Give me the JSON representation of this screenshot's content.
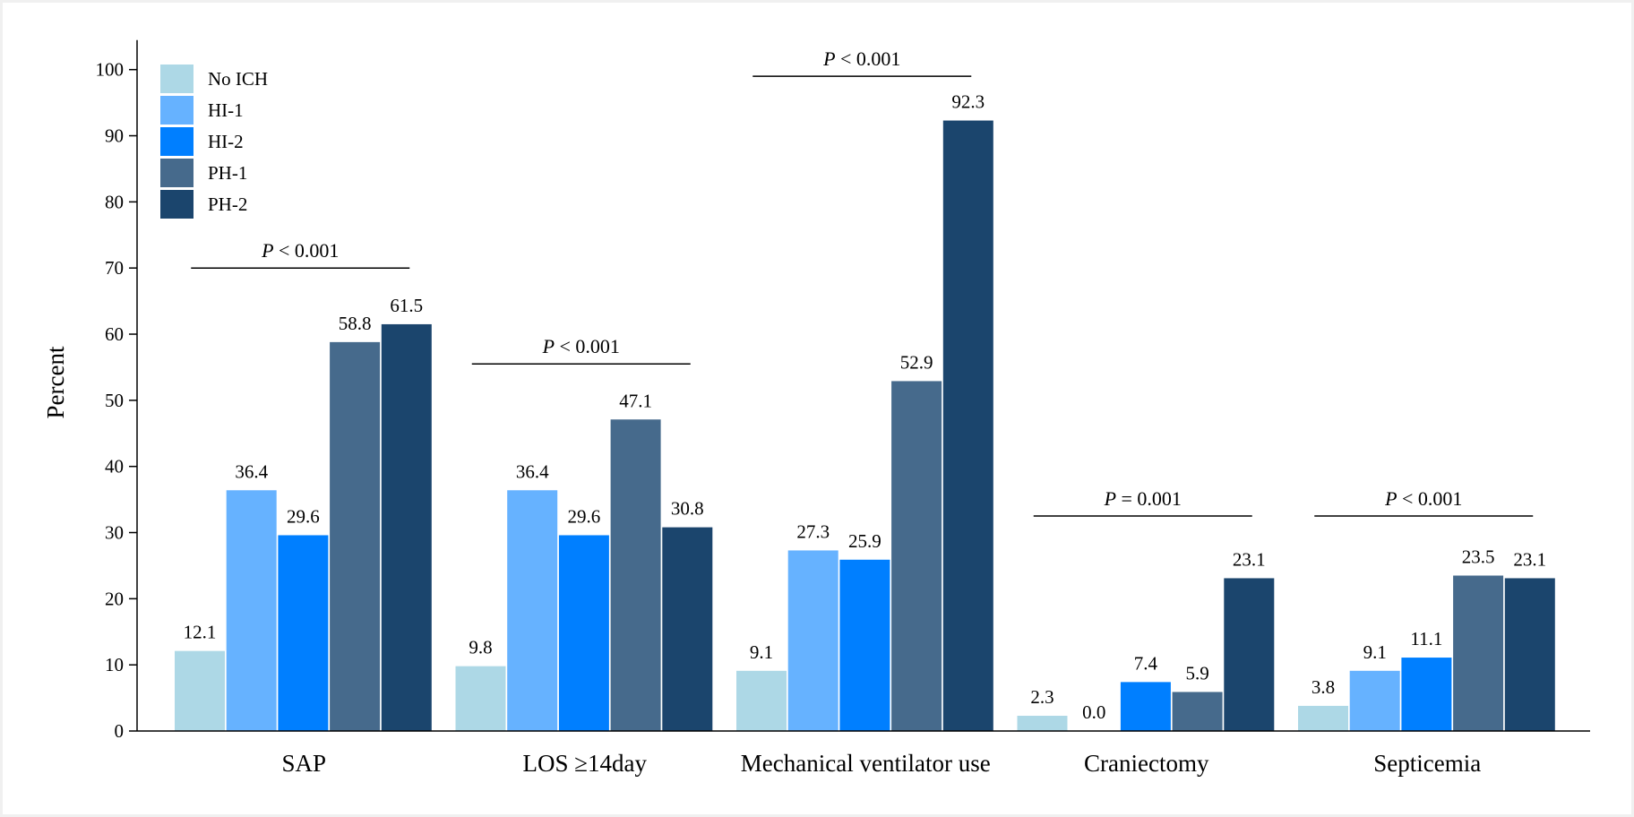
{
  "chart_data": {
    "type": "bar",
    "ylabel": "Percent",
    "xlabel": "",
    "ylim": [
      0,
      100
    ],
    "yticks": [
      0,
      10,
      20,
      30,
      40,
      50,
      60,
      70,
      80,
      90,
      100
    ],
    "grid": false,
    "legend_position": "top-left",
    "categories": [
      "SAP",
      "LOS ≥14day",
      "Mechanical ventilator use",
      "Craniectomy",
      "Septicemia"
    ],
    "series": [
      {
        "name": "No ICH",
        "color": "#add8e6",
        "values": [
          12.1,
          9.8,
          9.1,
          2.3,
          3.8
        ]
      },
      {
        "name": "HI-1",
        "color": "#66b2ff",
        "values": [
          36.4,
          36.4,
          27.3,
          0.0,
          9.1
        ]
      },
      {
        "name": "HI-2",
        "color": "#007fff",
        "values": [
          29.6,
          29.6,
          25.9,
          7.4,
          11.1
        ]
      },
      {
        "name": "PH-1",
        "color": "#466a8c",
        "values": [
          58.8,
          47.1,
          52.9,
          5.9,
          23.5
        ]
      },
      {
        "name": "PH-2",
        "color": "#1b456d",
        "values": [
          61.5,
          30.8,
          92.3,
          23.1,
          23.1
        ]
      }
    ],
    "data_labels": [
      [
        "12.1",
        "9.8",
        "9.1",
        "2.3",
        "3.8"
      ],
      [
        "36.4",
        "36.4",
        "27.3",
        "0.0",
        "9.1"
      ],
      [
        "29.6",
        "29.6",
        "25.9",
        "7.4",
        "11.1"
      ],
      [
        "58.8",
        "47.1",
        "52.9",
        "5.9",
        "23.5"
      ],
      [
        "61.5",
        "30.8",
        "92.3",
        "23.1",
        "23.1"
      ]
    ],
    "annotations": [
      {
        "category": "SAP",
        "italic": "P",
        "text": " < 0.001",
        "y": 70
      },
      {
        "category": "LOS ≥14day",
        "italic": "P",
        "text": " < 0.001",
        "y": 55.5
      },
      {
        "category": "Mechanical ventilator use",
        "italic": "P",
        "text": " < 0.001",
        "y": 99
      },
      {
        "category": "Craniectomy",
        "italic": "P",
        "text": " = 0.001",
        "y": 32.5
      },
      {
        "category": "Septicemia",
        "italic": "P",
        "text": " < 0.001",
        "y": 32.5
      }
    ]
  }
}
